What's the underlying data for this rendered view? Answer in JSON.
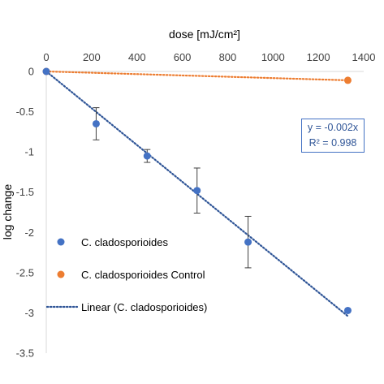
{
  "chart_data": {
    "type": "scatter",
    "xlabel": "dose [mJ/cm²]",
    "ylabel": "log change",
    "x_axis_position": "top",
    "xlim": [
      0,
      1400
    ],
    "ylim": [
      -3.5,
      0
    ],
    "x_ticks": [
      "0",
      "200",
      "400",
      "600",
      "800",
      "1000",
      "1200",
      "1400"
    ],
    "y_ticks": [
      "0",
      "-0.5",
      "-1",
      "-1.5",
      "-2",
      "-2.5",
      "-3",
      "-3.5"
    ],
    "grid": false,
    "legend_position": "left-middle",
    "series": [
      {
        "name": "C. cladosporioides",
        "color": "#4472c4",
        "marker": "circle",
        "x": [
          0,
          220,
          445,
          665,
          890,
          1330
        ],
        "y": [
          0,
          -0.65,
          -1.05,
          -1.48,
          -2.12,
          -2.97
        ],
        "error": [
          0,
          0.2,
          0.08,
          0.28,
          0.32,
          0
        ]
      },
      {
        "name": "C. cladosporioides Control",
        "color": "#ed7d31",
        "marker": "circle",
        "x": [
          0,
          1330
        ],
        "y": [
          0,
          -0.11
        ]
      }
    ],
    "trendlines": [
      {
        "name": "Linear (C. cladosporioides)",
        "color": "#2f5597",
        "style": "dotted",
        "x": [
          0,
          1330
        ],
        "y": [
          0,
          -3.04
        ]
      },
      {
        "color": "#ed7d31",
        "style": "dotted",
        "x": [
          0,
          1330
        ],
        "y": [
          0,
          -0.11
        ]
      }
    ],
    "annotation": {
      "line1": "y = -0.002x",
      "line2": "R² = 0.998"
    }
  }
}
